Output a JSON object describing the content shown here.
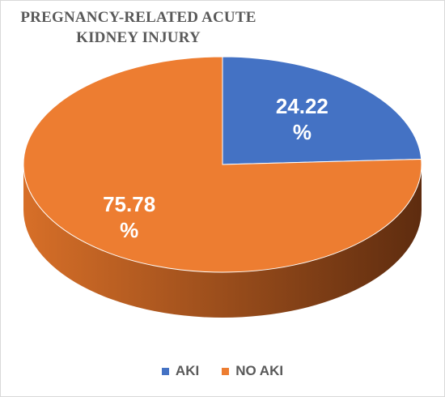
{
  "chart_data": {
    "type": "pie",
    "title_lines": [
      "PREGNANCY-RELATED ACUTE",
      "KIDNEY INJURY"
    ],
    "style": "3d",
    "slices": [
      {
        "name": "AKI",
        "value": 24.22,
        "label_value": "24.22",
        "label_unit": "%",
        "color": "#4472c4",
        "side_dark": "#27437a",
        "side_light": "#4f7bd1"
      },
      {
        "name": "NO AKI",
        "value": 75.78,
        "label_value": "75.78",
        "label_unit": "%",
        "color": "#ed7d31",
        "side_dark": "#5e2c0f",
        "side_light": "#d76f28"
      }
    ],
    "start_angle_deg": 90,
    "direction": "clockwise",
    "legend_position": "bottom"
  }
}
